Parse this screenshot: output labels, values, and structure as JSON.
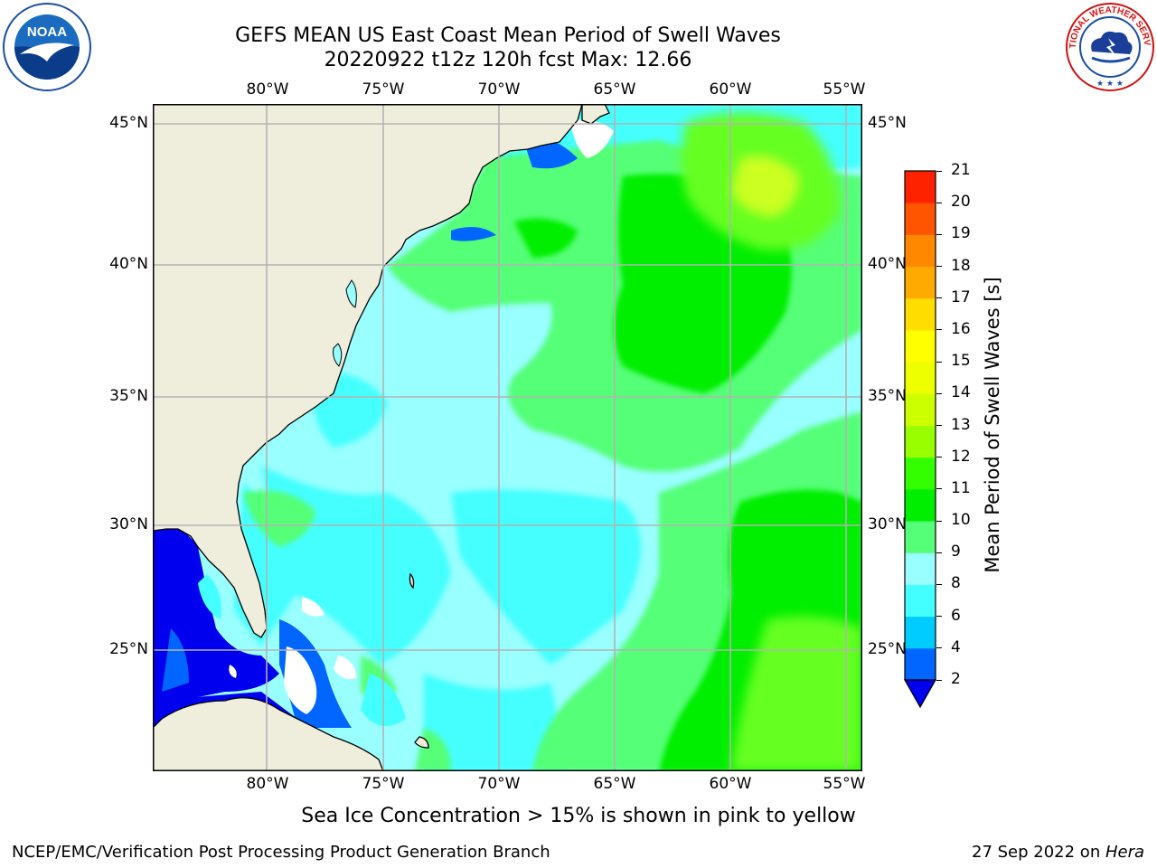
{
  "title": {
    "line1": "GEFS MEAN US East Coast Mean Period of Swell Waves",
    "line2": "20220922 t12z 120h fcst   Max: 12.66"
  },
  "logos": {
    "left": {
      "name": "noaa-logo",
      "text": "NOAA"
    },
    "right": {
      "name": "nws-logo",
      "text": "NATIONAL WEATHER SERVICE"
    }
  },
  "map": {
    "lon_labels": [
      "80°W",
      "75°W",
      "70°W",
      "65°W",
      "60°W",
      "55°W"
    ],
    "lat_labels": [
      "45°N",
      "40°N",
      "35°N",
      "30°N",
      "25°N"
    ],
    "land_color": "#efeedd",
    "extent": {
      "lon": [
        -85,
        -54.8
      ],
      "lat": [
        20.4,
        46
      ]
    }
  },
  "colorbar": {
    "label": "Mean Period of Swell Waves [s]",
    "ticks": [
      "2",
      "4",
      "6",
      "8",
      "9",
      "10",
      "11",
      "12",
      "13",
      "14",
      "15",
      "16",
      "17",
      "18",
      "19",
      "20",
      "21"
    ],
    "colors": [
      "#0066ff",
      "#00ccff",
      "#44ffff",
      "#99ffff",
      "#55ff77",
      "#00ee00",
      "#33ff00",
      "#99ff00",
      "#ccff00",
      "#eeff00",
      "#ffff00",
      "#ffdd00",
      "#ffaa00",
      "#ff8800",
      "#ff5500",
      "#ff2200"
    ],
    "under_color": "#0000ee"
  },
  "note": "Sea Ice Concentration > 15% is shown in pink to yellow",
  "footer": {
    "left": "NCEP/EMC/Verification Post Processing Product Generation Branch",
    "right_prefix": "27 Sep 2022 on ",
    "right_host": "Hera"
  }
}
